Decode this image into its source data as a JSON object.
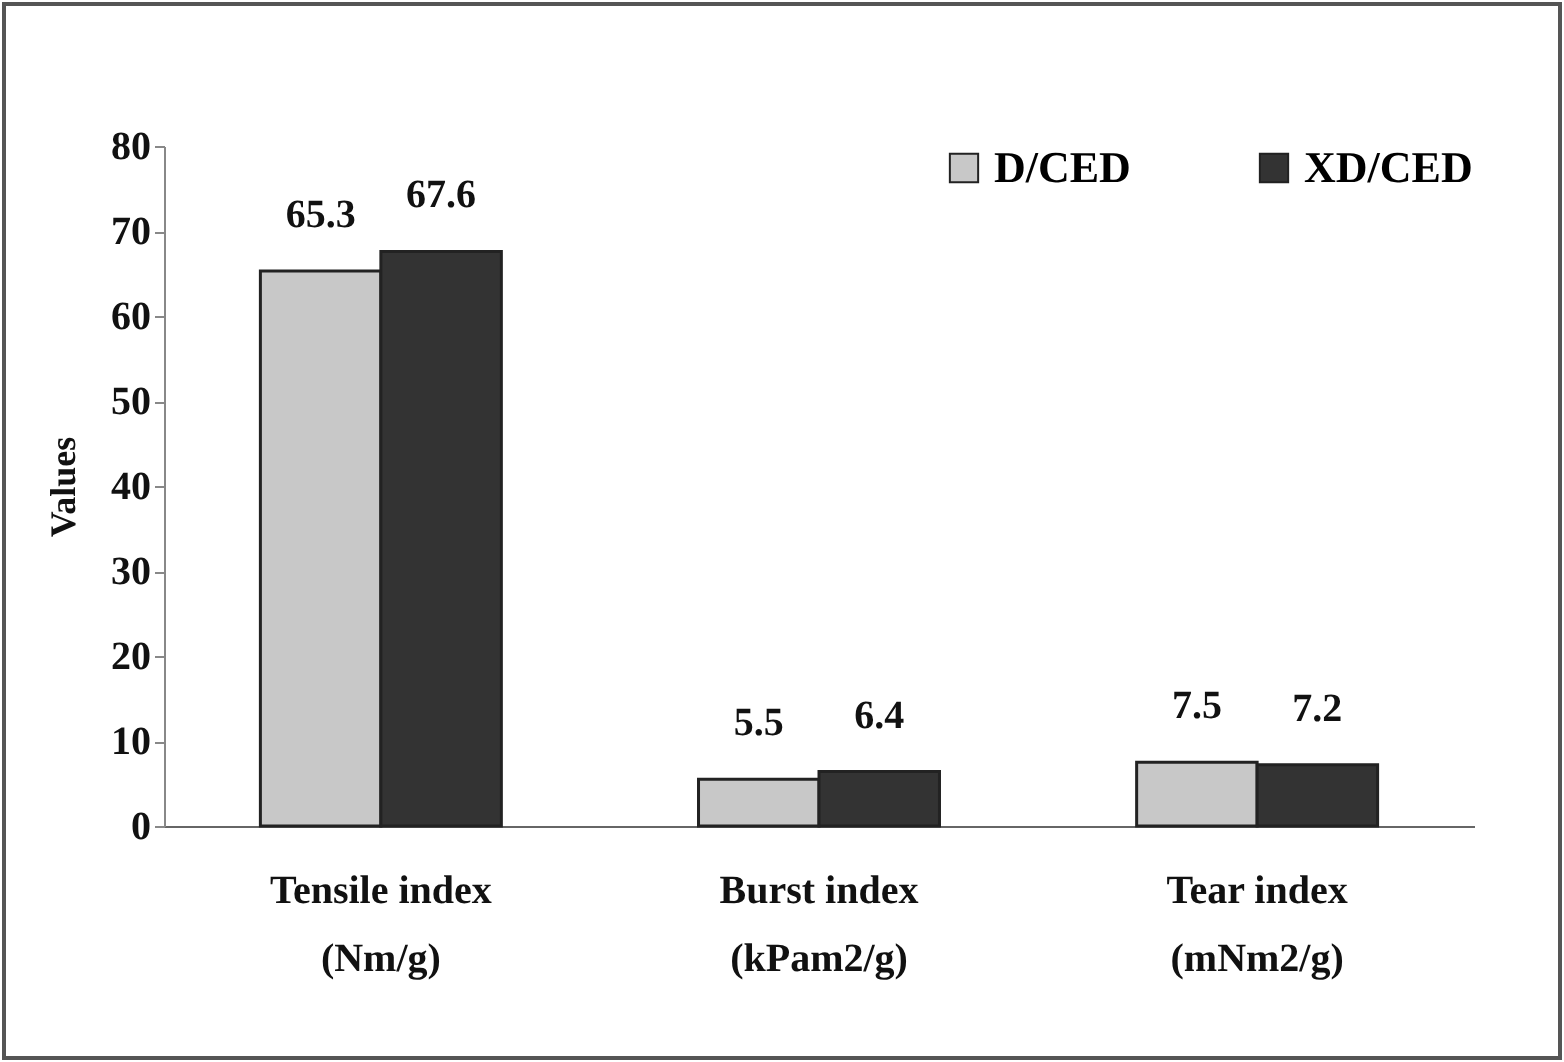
{
  "chart_data": {
    "type": "bar",
    "ylabel": "Values",
    "categories": [
      "Tensile index (Nm/g)",
      "Burst index (kPam2/g)",
      "Tear index (mNm2/g)"
    ],
    "series": [
      {
        "name": "D/CED",
        "color": "#c8c8c8",
        "values": [
          65.3,
          5.5,
          7.5
        ]
      },
      {
        "name": "XD/CED",
        "color": "#333333",
        "values": [
          67.6,
          6.4,
          7.2
        ]
      }
    ],
    "ylim": [
      0,
      80
    ],
    "yticks": [
      0,
      10,
      20,
      30,
      40,
      50,
      60,
      70,
      80
    ],
    "grid": false,
    "legend": "top right",
    "data_labels": true
  }
}
